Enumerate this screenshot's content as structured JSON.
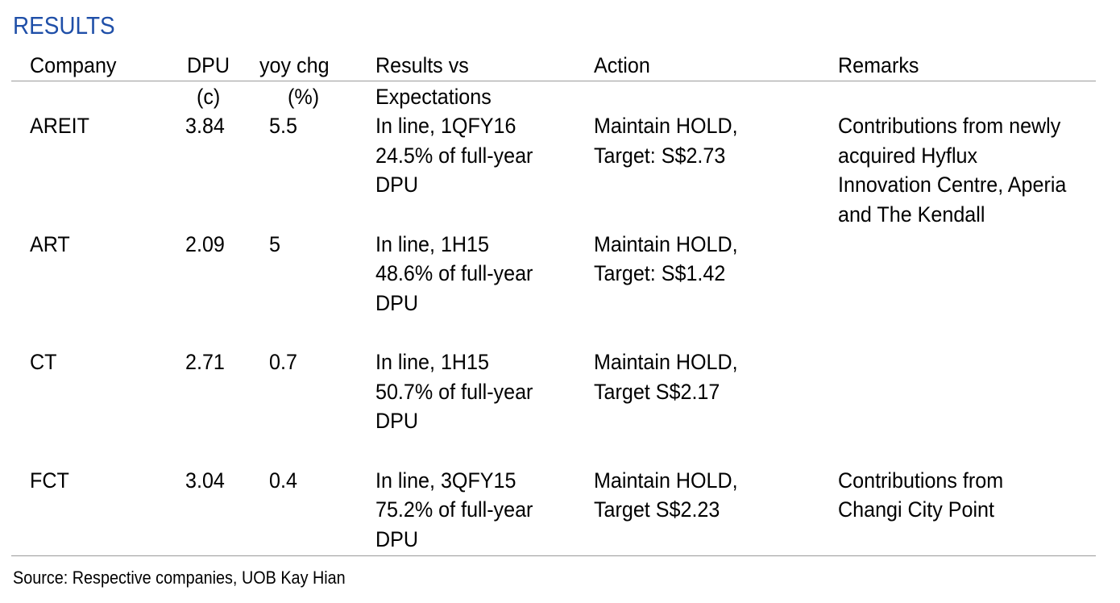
{
  "title": "RESULTS",
  "headers": {
    "company": "Company",
    "dpu": "DPU",
    "dpu_unit": "(c)",
    "yoy": "yoy chg",
    "yoy_unit": "(%)",
    "results_1": "Results vs",
    "results_2": "Expectations",
    "action": "Action",
    "remarks": "Remarks"
  },
  "rows": [
    {
      "company": "AREIT",
      "dpu": "3.84",
      "yoy": "5.5",
      "results": [
        "In line, 1QFY16",
        "24.5% of full-year",
        "DPU"
      ],
      "action": [
        "Maintain HOLD,",
        "Target: S$2.73"
      ],
      "remarks": [
        "Contributions from newly",
        "acquired Hyflux",
        "Innovation Centre, Aperia",
        "and The Kendall"
      ]
    },
    {
      "company": "ART",
      "dpu": "2.09",
      "yoy": "5",
      "results": [
        "In line, 1H15",
        "48.6% of full-year",
        "DPU"
      ],
      "action": [
        "Maintain HOLD,",
        "Target: S$1.42"
      ],
      "remarks": []
    },
    {
      "company": "CT",
      "dpu": "2.71",
      "yoy": "0.7",
      "results": [
        "In line, 1H15",
        "50.7% of full-year",
        "DPU"
      ],
      "action": [
        "Maintain HOLD,",
        "Target S$2.17"
      ],
      "remarks": []
    },
    {
      "company": "FCT",
      "dpu": "3.04",
      "yoy": "0.4",
      "results": [
        "In line, 3QFY15",
        "75.2% of full-year",
        "DPU"
      ],
      "action": [
        "Maintain HOLD,",
        "Target S$2.23"
      ],
      "remarks": [
        "Contributions from",
        "Changi City Point"
      ]
    }
  ],
  "source": "Source: Respective companies, UOB Kay Hian",
  "colors": {
    "title": "#1f4fa8",
    "rule": "#9a9a9a"
  }
}
